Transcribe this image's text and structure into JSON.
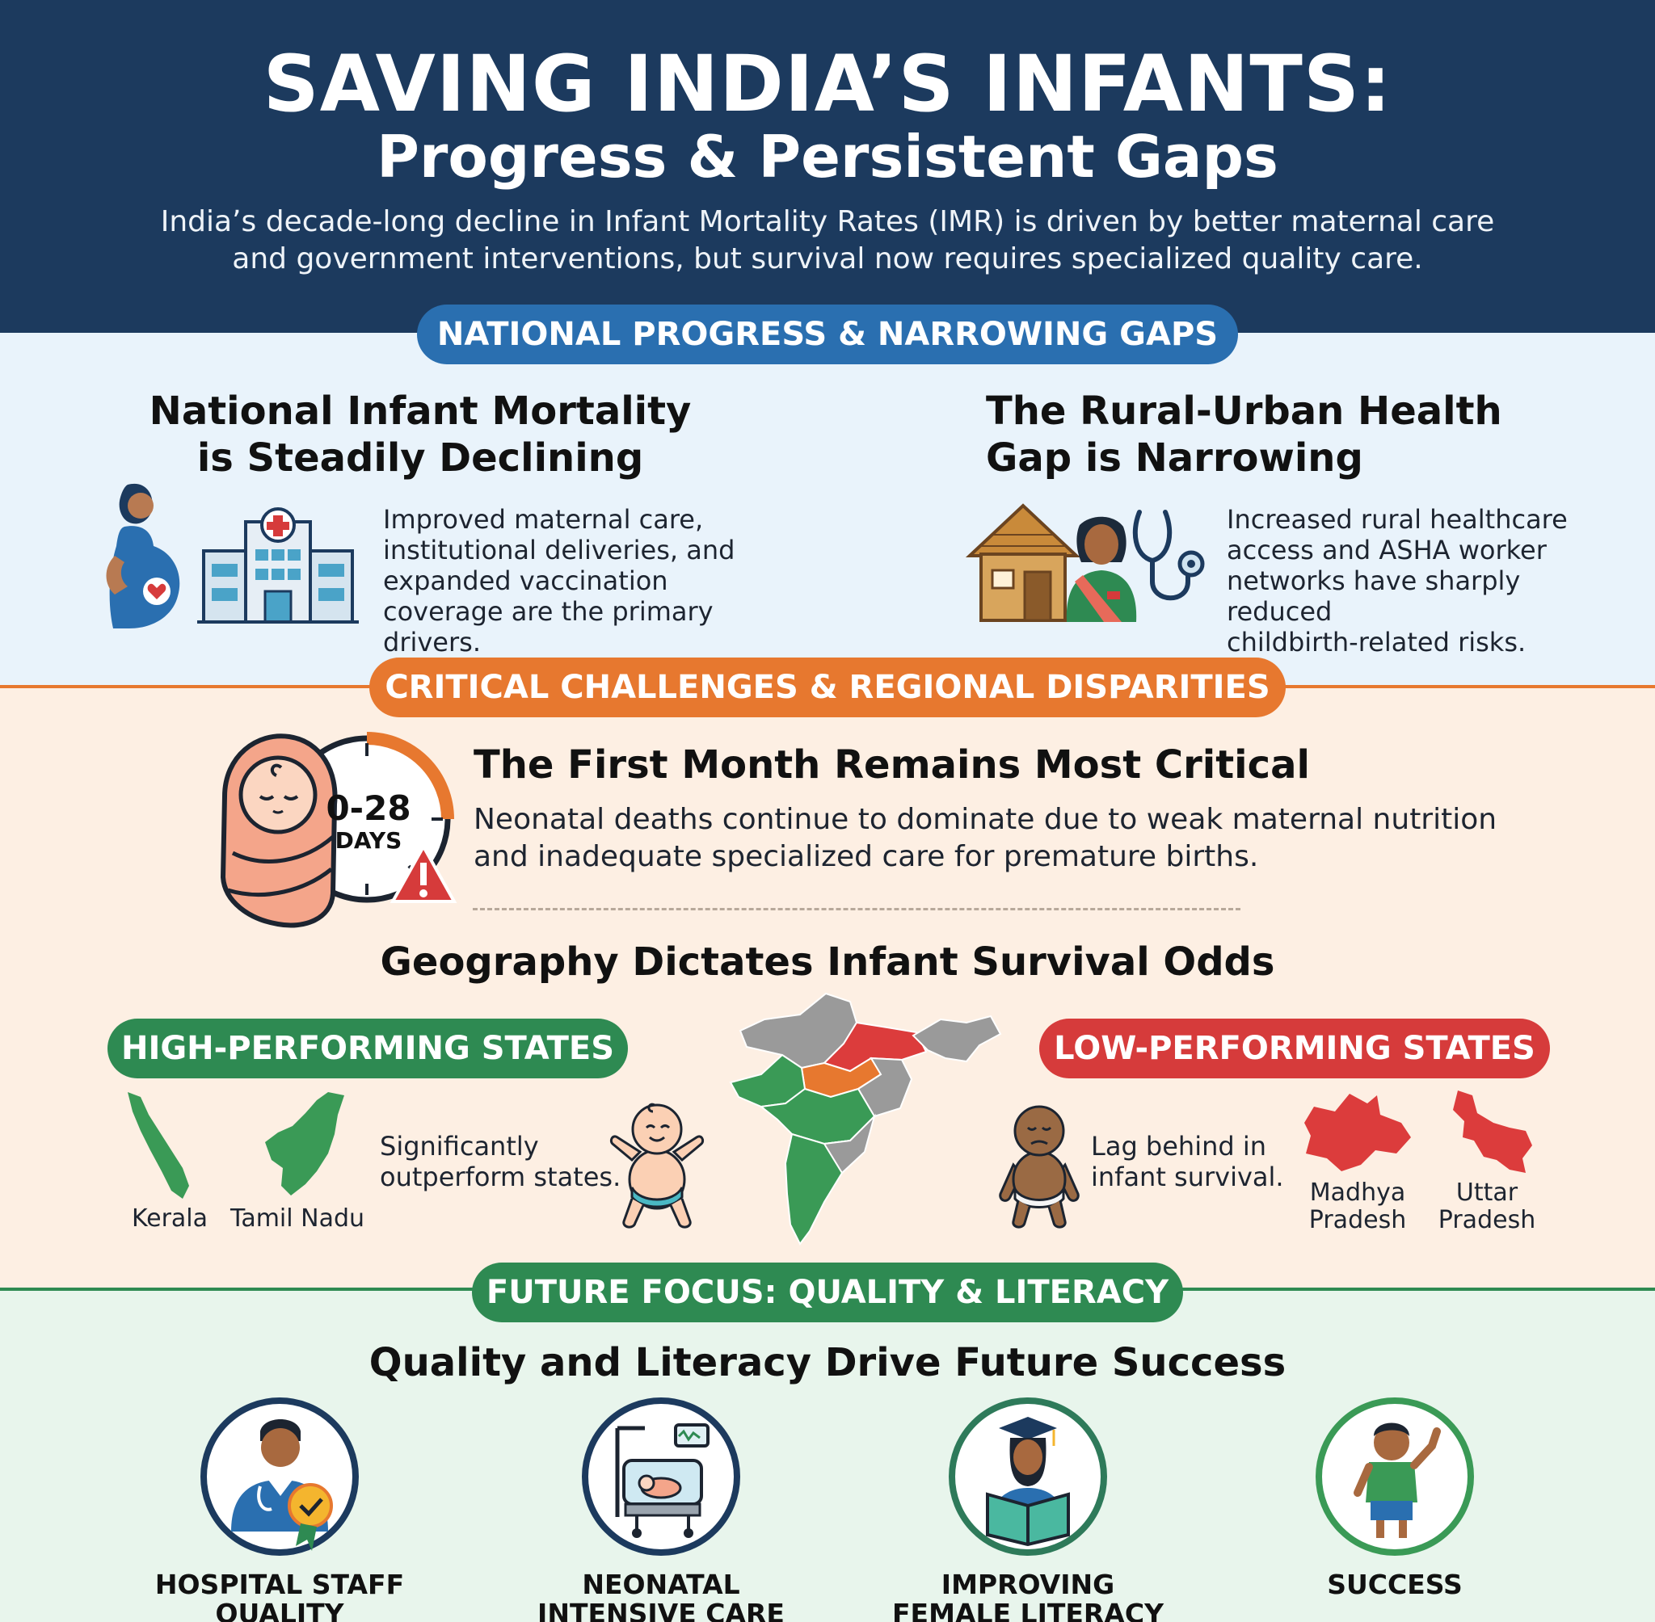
{
  "header": {
    "title": "SAVING INDIA’S INFANTS:",
    "subtitle": "Progress & Persistent Gaps",
    "intro": "India’s decade-long decline in Infant Mortality Rates (IMR) is driven by better maternal care and government interventions, but survival now requires specialized quality care."
  },
  "section1": {
    "pill": "NATIONAL PROGRESS & NARROWING GAPS",
    "left": {
      "title_line1": "National Infant Mortality",
      "title_line2": "is Steadily Declining",
      "text_lines": [
        "Improved maternal care,",
        "institutional deliveries, and",
        "expanded vaccination",
        "coverage are the primary drivers."
      ]
    },
    "right": {
      "title_line1": "The Rural-Urban Health",
      "title_line2": "Gap is Narrowing",
      "text_lines": [
        "Increased rural healthcare",
        "access and ASHA worker",
        "networks have sharply reduced",
        "childbirth-related risks."
      ]
    }
  },
  "section2": {
    "pill": "CRITICAL CHALLENGES & REGIONAL DISPARITIES",
    "clock_range": "0-28",
    "clock_unit": "DAYS",
    "critical_title": "The First Month Remains Most Critical",
    "critical_lines": [
      "Neonatal deaths continue to dominate due to weak maternal nutrition",
      "and inadequate specialized care for premature births."
    ],
    "geo_title": "Geography Dictates Infant Survival Odds",
    "high_pill": "HIGH-PERFORMING STATES",
    "low_pill": "LOW-PERFORMING STATES",
    "high_states": [
      "Kerala",
      "Tamil Nadu"
    ],
    "high_text_lines": [
      "Significantly",
      "outperform states."
    ],
    "low_text_lines": [
      "Lag behind in",
      "infant survival."
    ],
    "low_states": [
      [
        "Madhya",
        "Pradesh"
      ],
      [
        "Uttar",
        "Pradesh"
      ]
    ]
  },
  "section3": {
    "pill": "FUTURE FOCUS: QUALITY & LITERACY",
    "title": "Quality and Literacy Drive Future Success",
    "items": [
      {
        "line1": "HOSPITAL STAFF",
        "line2": "QUALITY"
      },
      {
        "line1": "NEONATAL",
        "line2": "INTENSIVE CARE"
      },
      {
        "line1": "IMPROVING",
        "line2": "FEMALE LITERACY"
      },
      {
        "line1": "SUCCESS",
        "line2": ""
      }
    ]
  },
  "colors": {
    "navy": "#1c3a5e",
    "blue_pill": "#2a6fb0",
    "orange_pill": "#e7782f",
    "green_pill": "#2e8a52",
    "red_pill": "#d63b3b",
    "green_state": "#3a9a56",
    "red_state": "#dc3c3c"
  }
}
